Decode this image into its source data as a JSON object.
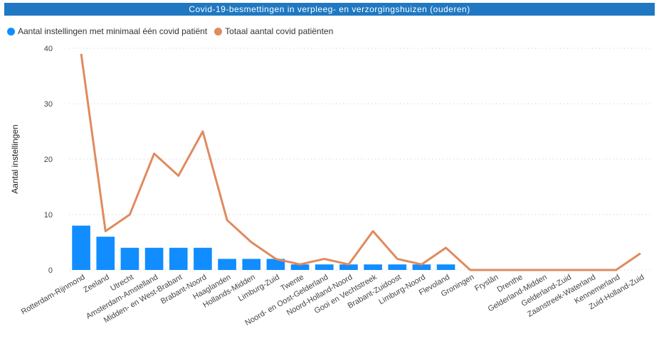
{
  "chart_data": {
    "type": "bar",
    "title": "Covid-19-besmettingen in verpleeg- en verzorgingshuizen (ouderen)",
    "xlabel": "",
    "ylabel": "Aantal instellingen",
    "ylim": [
      0,
      40
    ],
    "yticks": [
      0,
      10,
      20,
      30,
      40
    ],
    "grid": true,
    "legend_position": "top-left",
    "categories": [
      "Rotterdam-Rijnmond",
      "Zeeland",
      "Utrecht",
      "Amsterdam-Amstelland",
      "Midden- en West-Brabant",
      "Brabant-Noord",
      "Haaglanden",
      "Hollands-Midden",
      "Limburg-Zuid",
      "Twente",
      "Noord- en Oost-Gelderland",
      "Noord-Holland-Noord",
      "Gooi en Vechtstreek",
      "Brabant-Zuidoost",
      "Limburg-Noord",
      "Flevoland",
      "Groningen",
      "Fryslân",
      "Drenthe",
      "Gelderland-Midden",
      "Gelderland-Zuid",
      "Zaanstreek-Waterland",
      "Kennemerland",
      "Zuid-Holland-Zuid"
    ],
    "series": [
      {
        "name": "Aantal instellingen met minimaal één covid patiënt",
        "kind": "bar",
        "color": "#118dff",
        "values": [
          8,
          6,
          4,
          4,
          4,
          4,
          2,
          2,
          2,
          1,
          1,
          1,
          1,
          1,
          1,
          1,
          0,
          0,
          0,
          0,
          0,
          0,
          0,
          0
        ]
      },
      {
        "name": "Totaal aantal covid patiënten",
        "kind": "line",
        "color": "#e08a5e",
        "values": [
          39,
          7,
          10,
          21,
          17,
          25,
          9,
          5,
          2,
          1,
          2,
          1,
          7,
          2,
          1,
          4,
          0,
          0,
          0,
          0,
          0,
          0,
          0,
          3
        ]
      }
    ]
  }
}
